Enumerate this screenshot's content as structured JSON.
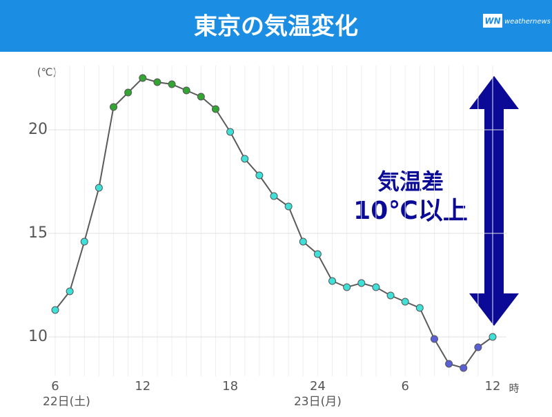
{
  "header": {
    "title": "東京の気温変化",
    "logo_mark": "WN",
    "logo_text": "weathernews"
  },
  "chart_data": {
    "type": "line",
    "y_unit": "(℃)",
    "x_unit": "時",
    "categories": [
      "6",
      null,
      null,
      null,
      null,
      null,
      "12",
      null,
      null,
      null,
      null,
      null,
      "18",
      null,
      null,
      null,
      null,
      null,
      "24",
      null,
      null,
      null,
      null,
      null,
      "6",
      null,
      null,
      null,
      null,
      null,
      "12"
    ],
    "x_sublabels": [
      "22日(土)",
      "23日(月)"
    ],
    "series": [
      {
        "color": "#5a5a5a",
        "values": [
          11.3,
          12.2,
          14.6,
          17.2,
          21.1,
          21.8,
          22.5,
          22.3,
          22.2,
          21.9,
          21.6,
          21.0,
          19.9,
          18.6,
          17.8,
          16.8,
          16.3,
          14.6,
          14.0,
          12.7,
          12.4,
          12.6,
          12.4,
          12.0,
          11.7,
          11.4,
          9.9,
          8.7,
          8.5,
          9.5,
          10.0
        ],
        "point_colors": [
          "#3fe0d8",
          "#3fe0d8",
          "#3fe0d8",
          "#3fe0d8",
          "#33a532",
          "#33a532",
          "#33a532",
          "#33a532",
          "#33a532",
          "#33a532",
          "#33a532",
          "#33a532",
          "#3fe0d8",
          "#3fe0d8",
          "#3fe0d8",
          "#3fe0d8",
          "#3fe0d8",
          "#3fe0d8",
          "#3fe0d8",
          "#3fe0d8",
          "#3fe0d8",
          "#3fe0d8",
          "#3fe0d8",
          "#3fe0d8",
          "#3fe0d8",
          "#3fe0d8",
          "#5b5fd6",
          "#5b5fd6",
          "#5b5fd6",
          "#5b5fd6",
          "#3fe0d8"
        ]
      }
    ],
    "ylim": [
      8.1,
      23.1
    ],
    "yticks": [
      10,
      15,
      20
    ],
    "grid": true,
    "annotation": {
      "lines": [
        "気温差",
        "10℃以上"
      ],
      "color": "#0a0a96"
    }
  }
}
